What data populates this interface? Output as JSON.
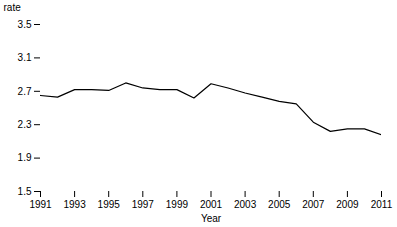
{
  "chart_data": {
    "type": "line",
    "x": [
      1991,
      1992,
      1993,
      1994,
      1995,
      1996,
      1997,
      1998,
      1999,
      2000,
      2001,
      2002,
      2003,
      2004,
      2005,
      2006,
      2007,
      2008,
      2009,
      2010,
      2011
    ],
    "values": [
      2.65,
      2.63,
      2.72,
      2.72,
      2.71,
      2.8,
      2.74,
      2.72,
      2.72,
      2.62,
      2.79,
      2.74,
      2.68,
      2.63,
      2.58,
      2.55,
      2.33,
      2.22,
      2.25,
      2.25,
      2.18
    ],
    "color": "#000000",
    "xlabel": "Year",
    "ylabel": "rate",
    "xlim": [
      1991,
      2011
    ],
    "xticks": [
      1991,
      1993,
      1995,
      1997,
      1999,
      2001,
      2003,
      2005,
      2007,
      2009,
      2011
    ],
    "ylim": [
      1.5,
      3.5
    ],
    "yticks": [
      1.5,
      1.9,
      2.3,
      2.7,
      3.1,
      3.5
    ],
    "grid": false
  }
}
